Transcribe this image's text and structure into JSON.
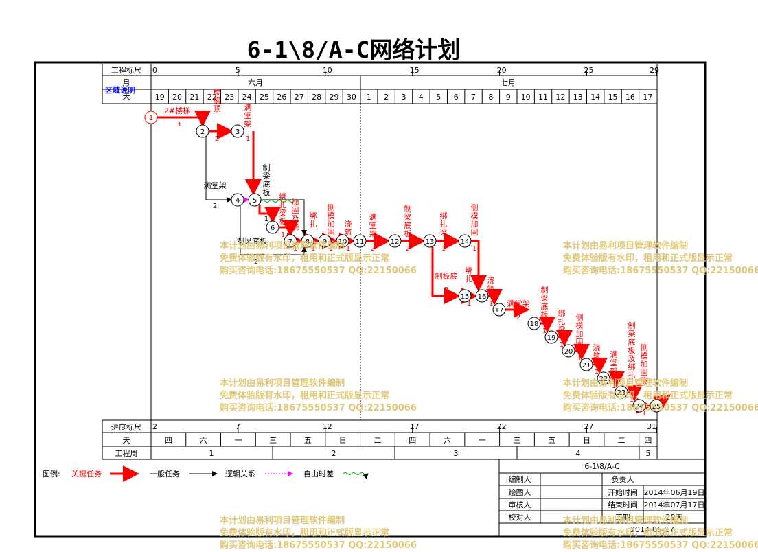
{
  "title": "6-1\\8/A-C网络计划",
  "header": {
    "scale_label": "工程标尺",
    "month_label": "月",
    "day_label": "天",
    "region_note": "区域说明",
    "scale_ticks": [
      "0",
      "5",
      "10",
      "15",
      "20",
      "25",
      "29"
    ],
    "months": [
      "六月",
      "七月"
    ],
    "days": [
      "19",
      "20",
      "21",
      "22",
      "23",
      "24",
      "25",
      "26",
      "27",
      "28",
      "29",
      "30",
      "1",
      "2",
      "3",
      "4",
      "5",
      "6",
      "7",
      "8",
      "9",
      "10",
      "11",
      "12",
      "13",
      "14",
      "15",
      "16",
      "17"
    ]
  },
  "footer": {
    "progress_label": "进度标尺",
    "progress_ticks": [
      "2",
      "7",
      "12",
      "17",
      "22",
      "27",
      "31"
    ],
    "weekday_label": "天",
    "weekdays": [
      "四",
      "六",
      "一",
      "三",
      "五",
      "日",
      "二",
      "四",
      "六",
      "一",
      "三",
      "五",
      "日",
      "二",
      "四"
    ],
    "week_label": "工程周",
    "weeks": [
      "1",
      "2",
      "3",
      "4",
      "5"
    ]
  },
  "legend": {
    "prefix": "图例:",
    "critical": "关键任务",
    "general": "一般任务",
    "logic": "逻辑关系",
    "float": "自由时差",
    "critical_color": "#ff0000",
    "logic_color": "#ff00ff",
    "float_color": "#00aa00"
  },
  "info": {
    "plan_name": "6-1\\8/A-C",
    "editor": "编制人",
    "owner": "负责人",
    "drawer": "绘图人",
    "start_label": "开始时间",
    "start_value": "2014年06月19日",
    "reviewer": "审核人",
    "end_label": "结束时间",
    "end_value": "2014年07月17日",
    "checker": "校对人",
    "duration_label": "工期",
    "duration_value": "29天",
    "date": "2014-06-17"
  },
  "watermark": {
    "line1": "本计划由易利项目管理软件编制",
    "line2": "免费体验版有水印，租用和正式版显示正常",
    "line3": "购买咨询电话:18675550537 QQ:22150066"
  },
  "network": {
    "nodes": [
      "1",
      "2",
      "3",
      "4",
      "5",
      "6",
      "7",
      "8",
      "9",
      "10",
      "11",
      "12",
      "13",
      "14",
      "15",
      "16",
      "17",
      "18",
      "19",
      "20",
      "21",
      "22",
      "23",
      "24",
      "25"
    ],
    "tasks": [
      {
        "name": "2#楼梯",
        "dur": "3"
      },
      {
        "name": "楼梯顶",
        "dur": "2"
      },
      {
        "name": "满堂架",
        "dur": "1"
      },
      {
        "name": "满堂架",
        "dur": "2"
      },
      {
        "name": "制梁底板",
        "dur": "1"
      },
      {
        "name": "绑扎梁板",
        "dur": "1"
      },
      {
        "name": "加固及浇",
        "dur": "1"
      },
      {
        "name": "绑扎",
        "dur": "1"
      },
      {
        "name": "侧模加固",
        "dur": "1"
      },
      {
        "name": "浇筑",
        "dur": "1"
      },
      {
        "name": "制梁底板",
        "dur": "2"
      },
      {
        "name": "满堂架",
        "dur": "2"
      },
      {
        "name": "制梁底板",
        "dur": "2"
      },
      {
        "name": "绑扎梁",
        "dur": "1"
      },
      {
        "name": "侧模加固",
        "dur": "1"
      },
      {
        "name": "制板底",
        "dur": "2"
      },
      {
        "name": "绑扎",
        "dur": "1"
      },
      {
        "name": "浇筑",
        "dur": "1"
      },
      {
        "name": "满堂架",
        "dur": "2"
      },
      {
        "name": "制梁底板",
        "dur": "1"
      },
      {
        "name": "绑扎梁",
        "dur": "1"
      },
      {
        "name": "侧模加固",
        "dur": "1"
      },
      {
        "name": "浇筑",
        "dur": "1"
      },
      {
        "name": "满堂架",
        "dur": "1"
      },
      {
        "name": "制梁底板及绑扎",
        "dur": "1"
      },
      {
        "name": "侧模加固浇",
        "dur": "1"
      }
    ]
  }
}
